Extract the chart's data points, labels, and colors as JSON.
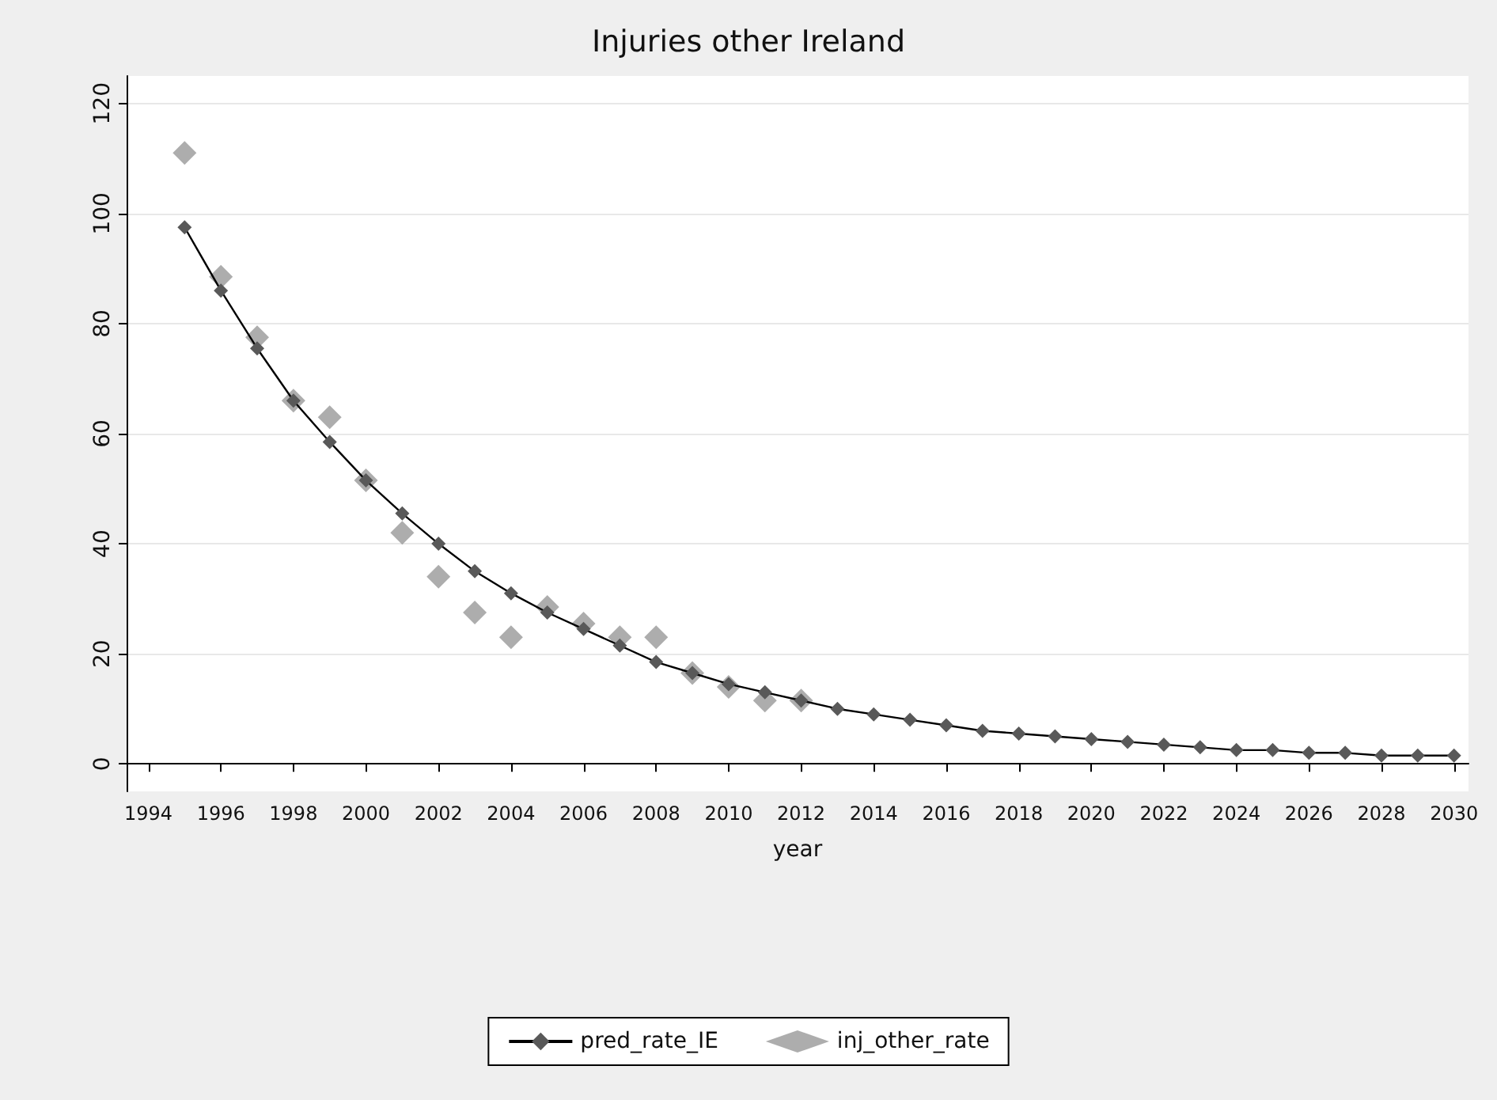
{
  "chart_data": {
    "type": "line",
    "title": "Injuries other Ireland",
    "xlabel": "year",
    "x": [
      1995,
      1996,
      1997,
      1998,
      1999,
      2000,
      2001,
      2002,
      2003,
      2004,
      2005,
      2006,
      2007,
      2008,
      2009,
      2010,
      2011,
      2012,
      2013,
      2014,
      2015,
      2016,
      2017,
      2018,
      2019,
      2020,
      2021,
      2022,
      2023,
      2024,
      2025,
      2026,
      2027,
      2028,
      2029,
      2030
    ],
    "series": [
      {
        "name": "pred_rate_IE",
        "color": "#595959",
        "marker": "diamond",
        "values": [
          97.5,
          86,
          75.5,
          66,
          58.5,
          51.5,
          45.5,
          40,
          35,
          31,
          27.5,
          24.5,
          21.5,
          18.5,
          16.5,
          14.5,
          13,
          11.5,
          10,
          9,
          8,
          7,
          6,
          5.5,
          5,
          4.5,
          4,
          3.5,
          3,
          2.5,
          2.5,
          2,
          2,
          1.5,
          1.5,
          1.5
        ]
      },
      {
        "name": "inj_other_rate",
        "type": "scatter",
        "color": "#999999",
        "marker": "diamond",
        "x": [
          1995,
          1996,
          1997,
          1998,
          1999,
          2000,
          2001,
          2002,
          2003,
          2004,
          2005,
          2006,
          2007,
          2008,
          2009,
          2010,
          2011,
          2012
        ],
        "values": [
          111,
          88.5,
          77.5,
          66,
          63,
          51.5,
          42,
          34,
          27.5,
          23,
          28.5,
          25.5,
          23,
          23,
          16.5,
          14,
          11.5,
          11.5
        ]
      }
    ],
    "xlim": [
      1993.4,
      2030.4
    ],
    "xticks": [
      1994,
      1996,
      1998,
      2000,
      2002,
      2004,
      2006,
      2008,
      2010,
      2012,
      2014,
      2016,
      2018,
      2020,
      2022,
      2024,
      2026,
      2028,
      2030
    ],
    "ylim": [
      -5,
      125
    ],
    "yticks": [
      0,
      20,
      40,
      60,
      80,
      100,
      120
    ],
    "grid": "y",
    "legend": "bottom",
    "line_style": "solid"
  }
}
